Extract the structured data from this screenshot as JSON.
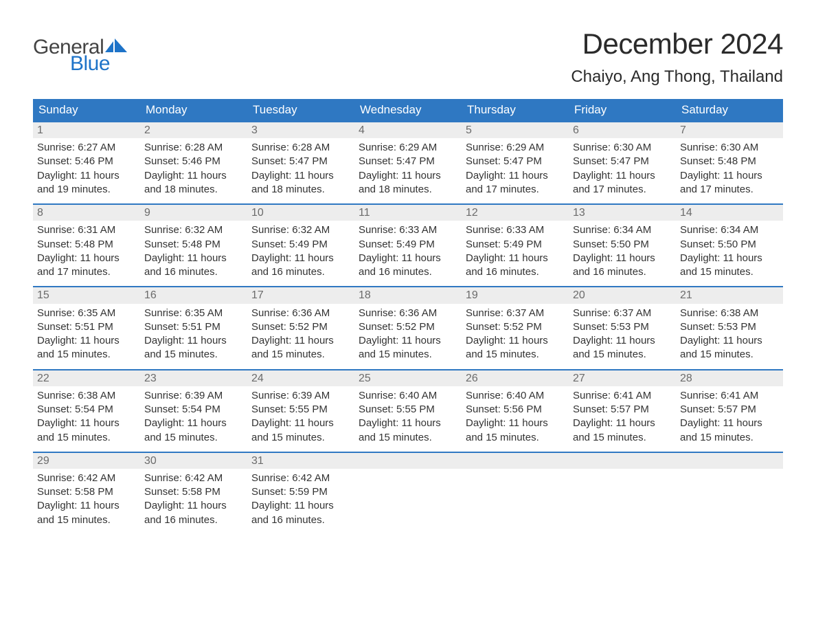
{
  "logo": {
    "text_general": "General",
    "text_blue": "Blue",
    "flag_color": "#1e73c8"
  },
  "title": "December 2024",
  "location": "Chaiyo, Ang Thong, Thailand",
  "colors": {
    "header_bg": "#2f78c2",
    "header_text": "#ffffff",
    "daynum_bg": "#ededed",
    "daynum_text": "#6b6b6b",
    "week_border": "#2f78c2",
    "body_text": "#333333",
    "page_bg": "#ffffff"
  },
  "fonts": {
    "title_size_pt": 32,
    "location_size_pt": 18,
    "dow_size_pt": 13,
    "body_size_pt": 11
  },
  "days_of_week": [
    "Sunday",
    "Monday",
    "Tuesday",
    "Wednesday",
    "Thursday",
    "Friday",
    "Saturday"
  ],
  "labels": {
    "sunrise": "Sunrise:",
    "sunset": "Sunset:",
    "daylight": "Daylight:"
  },
  "weeks": [
    [
      {
        "n": "1",
        "sunrise": "6:27 AM",
        "sunset": "5:46 PM",
        "daylight": "11 hours and 19 minutes."
      },
      {
        "n": "2",
        "sunrise": "6:28 AM",
        "sunset": "5:46 PM",
        "daylight": "11 hours and 18 minutes."
      },
      {
        "n": "3",
        "sunrise": "6:28 AM",
        "sunset": "5:47 PM",
        "daylight": "11 hours and 18 minutes."
      },
      {
        "n": "4",
        "sunrise": "6:29 AM",
        "sunset": "5:47 PM",
        "daylight": "11 hours and 18 minutes."
      },
      {
        "n": "5",
        "sunrise": "6:29 AM",
        "sunset": "5:47 PM",
        "daylight": "11 hours and 17 minutes."
      },
      {
        "n": "6",
        "sunrise": "6:30 AM",
        "sunset": "5:47 PM",
        "daylight": "11 hours and 17 minutes."
      },
      {
        "n": "7",
        "sunrise": "6:30 AM",
        "sunset": "5:48 PM",
        "daylight": "11 hours and 17 minutes."
      }
    ],
    [
      {
        "n": "8",
        "sunrise": "6:31 AM",
        "sunset": "5:48 PM",
        "daylight": "11 hours and 17 minutes."
      },
      {
        "n": "9",
        "sunrise": "6:32 AM",
        "sunset": "5:48 PM",
        "daylight": "11 hours and 16 minutes."
      },
      {
        "n": "10",
        "sunrise": "6:32 AM",
        "sunset": "5:49 PM",
        "daylight": "11 hours and 16 minutes."
      },
      {
        "n": "11",
        "sunrise": "6:33 AM",
        "sunset": "5:49 PM",
        "daylight": "11 hours and 16 minutes."
      },
      {
        "n": "12",
        "sunrise": "6:33 AM",
        "sunset": "5:49 PM",
        "daylight": "11 hours and 16 minutes."
      },
      {
        "n": "13",
        "sunrise": "6:34 AM",
        "sunset": "5:50 PM",
        "daylight": "11 hours and 16 minutes."
      },
      {
        "n": "14",
        "sunrise": "6:34 AM",
        "sunset": "5:50 PM",
        "daylight": "11 hours and 15 minutes."
      }
    ],
    [
      {
        "n": "15",
        "sunrise": "6:35 AM",
        "sunset": "5:51 PM",
        "daylight": "11 hours and 15 minutes."
      },
      {
        "n": "16",
        "sunrise": "6:35 AM",
        "sunset": "5:51 PM",
        "daylight": "11 hours and 15 minutes."
      },
      {
        "n": "17",
        "sunrise": "6:36 AM",
        "sunset": "5:52 PM",
        "daylight": "11 hours and 15 minutes."
      },
      {
        "n": "18",
        "sunrise": "6:36 AM",
        "sunset": "5:52 PM",
        "daylight": "11 hours and 15 minutes."
      },
      {
        "n": "19",
        "sunrise": "6:37 AM",
        "sunset": "5:52 PM",
        "daylight": "11 hours and 15 minutes."
      },
      {
        "n": "20",
        "sunrise": "6:37 AM",
        "sunset": "5:53 PM",
        "daylight": "11 hours and 15 minutes."
      },
      {
        "n": "21",
        "sunrise": "6:38 AM",
        "sunset": "5:53 PM",
        "daylight": "11 hours and 15 minutes."
      }
    ],
    [
      {
        "n": "22",
        "sunrise": "6:38 AM",
        "sunset": "5:54 PM",
        "daylight": "11 hours and 15 minutes."
      },
      {
        "n": "23",
        "sunrise": "6:39 AM",
        "sunset": "5:54 PM",
        "daylight": "11 hours and 15 minutes."
      },
      {
        "n": "24",
        "sunrise": "6:39 AM",
        "sunset": "5:55 PM",
        "daylight": "11 hours and 15 minutes."
      },
      {
        "n": "25",
        "sunrise": "6:40 AM",
        "sunset": "5:55 PM",
        "daylight": "11 hours and 15 minutes."
      },
      {
        "n": "26",
        "sunrise": "6:40 AM",
        "sunset": "5:56 PM",
        "daylight": "11 hours and 15 minutes."
      },
      {
        "n": "27",
        "sunrise": "6:41 AM",
        "sunset": "5:57 PM",
        "daylight": "11 hours and 15 minutes."
      },
      {
        "n": "28",
        "sunrise": "6:41 AM",
        "sunset": "5:57 PM",
        "daylight": "11 hours and 15 minutes."
      }
    ],
    [
      {
        "n": "29",
        "sunrise": "6:42 AM",
        "sunset": "5:58 PM",
        "daylight": "11 hours and 15 minutes."
      },
      {
        "n": "30",
        "sunrise": "6:42 AM",
        "sunset": "5:58 PM",
        "daylight": "11 hours and 16 minutes."
      },
      {
        "n": "31",
        "sunrise": "6:42 AM",
        "sunset": "5:59 PM",
        "daylight": "11 hours and 16 minutes."
      },
      {
        "n": "",
        "sunrise": "",
        "sunset": "",
        "daylight": "",
        "empty": true
      },
      {
        "n": "",
        "sunrise": "",
        "sunset": "",
        "daylight": "",
        "empty": true
      },
      {
        "n": "",
        "sunrise": "",
        "sunset": "",
        "daylight": "",
        "empty": true
      },
      {
        "n": "",
        "sunrise": "",
        "sunset": "",
        "daylight": "",
        "empty": true
      }
    ]
  ]
}
